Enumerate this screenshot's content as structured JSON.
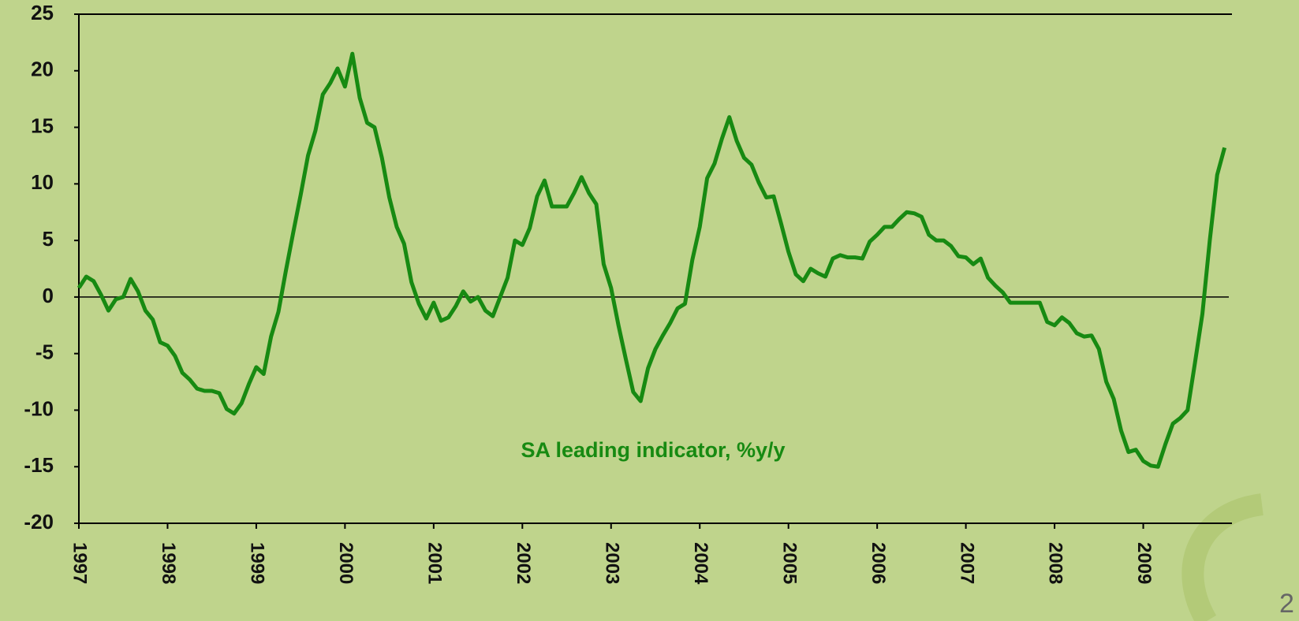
{
  "chart_data": {
    "type": "line",
    "categories": [
      "1997",
      null,
      null,
      null,
      null,
      null,
      null,
      null,
      null,
      null,
      null,
      null,
      "1998",
      null,
      null,
      null,
      null,
      null,
      null,
      null,
      null,
      null,
      null,
      null,
      "1999",
      null,
      null,
      null,
      null,
      null,
      null,
      null,
      null,
      null,
      null,
      null,
      "2000",
      null,
      null,
      null,
      null,
      null,
      null,
      null,
      null,
      null,
      null,
      null,
      "2001",
      null,
      null,
      null,
      null,
      null,
      null,
      null,
      null,
      null,
      null,
      null,
      "2002",
      null,
      null,
      null,
      null,
      null,
      null,
      null,
      null,
      null,
      null,
      null,
      "2003",
      null,
      null,
      null,
      null,
      null,
      null,
      null,
      null,
      null,
      null,
      null,
      "2004",
      null,
      null,
      null,
      null,
      null,
      null,
      null,
      null,
      null,
      null,
      null,
      "2005",
      null,
      null,
      null,
      null,
      null,
      null,
      null,
      null,
      null,
      null,
      null,
      "2006",
      null,
      null,
      null,
      null,
      null,
      null,
      null,
      null,
      null,
      null,
      null,
      "2007",
      null,
      null,
      null,
      null,
      null,
      null,
      null,
      null,
      null,
      null,
      null,
      "2008",
      null,
      null,
      null,
      null,
      null,
      null,
      null,
      null,
      null,
      null,
      null,
      "2009",
      null,
      null,
      null,
      null,
      null,
      null,
      null,
      null,
      null,
      null,
      null
    ],
    "series": [
      {
        "name": "SA leading indicator, %y/y",
        "color": "#178a12",
        "values": [
          0.8,
          1.8,
          1.4,
          0.2,
          -1.2,
          -0.2,
          0,
          1.6,
          0.5,
          -1.2,
          -2,
          -4,
          -4.3,
          -5.2,
          -6.7,
          -7.3,
          -8.1,
          -8.3,
          -8.3,
          -8.5,
          -9.9,
          -10.3,
          -9.4,
          -7.7,
          -6.2,
          -6.8,
          -3.5,
          -1.3,
          2.3,
          5.7,
          9,
          12.5,
          14.7,
          17.9,
          18.9,
          20.2,
          18.6,
          21.5,
          17.6,
          15.4,
          15,
          12.3,
          8.8,
          6.2,
          4.7,
          1.3,
          -0.6,
          -1.9,
          -0.5,
          -2.1,
          -1.8,
          -0.8,
          0.5,
          -0.4,
          0,
          -1.2,
          -1.7,
          0,
          1.7,
          5,
          4.6,
          6.1,
          8.9,
          10.3,
          8,
          8,
          8,
          9.2,
          10.6,
          9.2,
          8.2,
          2.9,
          0.8,
          -2.5,
          -5.5,
          -8.4,
          -9.2,
          -6.3,
          -4.6,
          -3.4,
          -2.3,
          -1,
          -0.6,
          3.3,
          6.2,
          10.5,
          11.8,
          14,
          15.9,
          13.8,
          12.3,
          11.7,
          10.1,
          8.8,
          8.9,
          6.5,
          4,
          2,
          1.4,
          2.5,
          2.1,
          1.8,
          3.4,
          3.7,
          3.5,
          3.5,
          3.4,
          4.9,
          5.5,
          6.2,
          6.2,
          6.9,
          7.5,
          7.4,
          7.1,
          5.5,
          5,
          5,
          4.5,
          3.6,
          3.5,
          2.9,
          3.4,
          1.7,
          1,
          0.4,
          -0.5,
          -0.5,
          -0.5,
          -0.5,
          -0.5,
          -2.2,
          -2.5,
          -1.8,
          -2.3,
          -3.2,
          -3.5,
          -3.4,
          -4.6,
          -7.5,
          -9,
          -11.8,
          -13.7,
          -13.5,
          -14.5,
          -14.9,
          -15,
          -13,
          -11.2,
          -10.7,
          -10,
          -5.8,
          -1.5,
          5,
          10.8,
          13.2
        ]
      }
    ],
    "ylim": [
      -20,
      25
    ],
    "yticks": [
      -20,
      -15,
      -10,
      -5,
      0,
      5,
      10,
      15,
      20,
      25
    ],
    "grid": false,
    "zero_line": true,
    "page_number": "2"
  }
}
